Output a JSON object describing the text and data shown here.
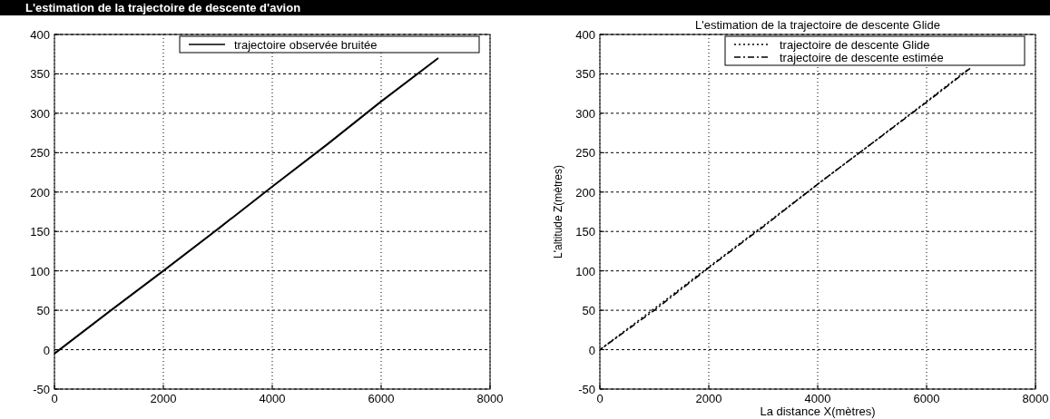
{
  "chart_data": [
    {
      "type": "line",
      "title": "L'estimation de la trajectoire de descente d'avion",
      "xlim": [
        0,
        8000
      ],
      "ylim": [
        -50,
        400
      ],
      "xticks": [
        0,
        2000,
        4000,
        6000,
        8000
      ],
      "yticks": [
        -50,
        0,
        50,
        100,
        150,
        200,
        250,
        300,
        350,
        400
      ],
      "grid": true,
      "legend": "top right",
      "line_style": "solid",
      "series": [
        {
          "name": "trajectoire observée bruitée",
          "color": "#000000",
          "x": [
            0,
            1000,
            2000,
            3000,
            4000,
            5000,
            6000,
            7050
          ],
          "values": [
            -5,
            48,
            100,
            153,
            207,
            260,
            315,
            370
          ]
        }
      ]
    },
    {
      "type": "line",
      "title": "L'estimation de la trajectoire de descente Glide",
      "xlabel": "La distance X(mètres)",
      "ylabel": "L'altitude Z(mètres)",
      "xlim": [
        0,
        8000
      ],
      "ylim": [
        -50,
        400
      ],
      "xticks": [
        0,
        2000,
        4000,
        6000,
        8000
      ],
      "yticks": [
        -50,
        0,
        50,
        100,
        150,
        200,
        250,
        300,
        350,
        400
      ],
      "grid": true,
      "legend": "top right",
      "series": [
        {
          "name": "trajectoire de descente Glide",
          "color": "#000000",
          "line_style": "dotted",
          "x": [
            0,
            1000,
            2000,
            3000,
            4000,
            5000,
            6000,
            6750
          ],
          "values": [
            0,
            52,
            105,
            157,
            210,
            262,
            315,
            355
          ]
        },
        {
          "name": "trajectoire de descente estimée",
          "color": "#000000",
          "line_style": "dashed",
          "x": [
            0,
            1000,
            2000,
            3000,
            4000,
            5000,
            6000,
            6800
          ],
          "values": [
            0,
            50,
            104,
            156,
            210,
            262,
            314,
            357
          ]
        }
      ]
    }
  ]
}
